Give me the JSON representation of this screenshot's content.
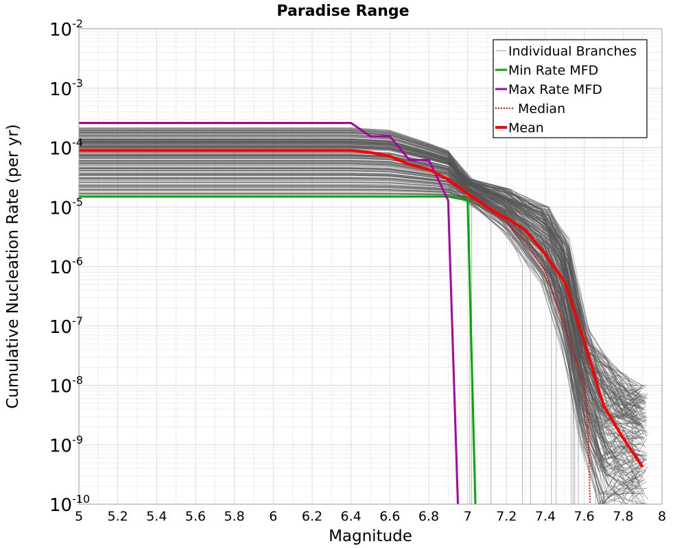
{
  "chart_data": {
    "type": "line",
    "title": "Paradise Range",
    "xlabel": "Magnitude",
    "ylabel": "Cumulative Nucleation Rate (per yr)",
    "x_scale": "linear",
    "y_scale": "log",
    "xlim": [
      5,
      8
    ],
    "ylim": [
      1e-10,
      0.01
    ],
    "x_ticks": [
      "5",
      "5.2",
      "5.4",
      "5.6",
      "5.8",
      "6",
      "6.2",
      "6.4",
      "6.6",
      "6.8",
      "7",
      "7.2",
      "7.4",
      "7.6",
      "7.8",
      "8"
    ],
    "y_ticks": [
      {
        "base": "10",
        "exp": "-10"
      },
      {
        "base": "10",
        "exp": "-9"
      },
      {
        "base": "10",
        "exp": "-8"
      },
      {
        "base": "10",
        "exp": "-7"
      },
      {
        "base": "10",
        "exp": "-6"
      },
      {
        "base": "10",
        "exp": "-5"
      },
      {
        "base": "10",
        "exp": "-4"
      },
      {
        "base": "10",
        "exp": "-3"
      },
      {
        "base": "10",
        "exp": "-2"
      }
    ],
    "grid": true,
    "legend_position": "top-right",
    "series": [
      {
        "name": "Individual Branches",
        "color": "#555555",
        "style": "thin-translucent",
        "note_values": "many logic-tree branch curves forming a dense band",
        "x": [
          5.0,
          6.4,
          6.6,
          6.8,
          6.9,
          7.0,
          7.2,
          7.4,
          7.5,
          7.6,
          7.7,
          7.8,
          7.9
        ],
        "values_low": [
          1.5e-05,
          1.5e-05,
          1.5e-05,
          1.5e-05,
          1.5e-05,
          1.3e-05,
          4e-06,
          5e-07,
          5e-08,
          1e-09,
          1e-10,
          1e-10,
          1e-10
        ],
        "values_high": [
          0.00022,
          0.00022,
          0.0002,
          0.00012,
          9e-05,
          3e-05,
          2e-05,
          1e-05,
          3e-06,
          1e-07,
          3e-08,
          1.5e-08,
          1e-08
        ]
      },
      {
        "name": "Min Rate MFD",
        "color": "#00aa00",
        "x": [
          5.0,
          6.4,
          6.6,
          6.8,
          6.9,
          7.0,
          7.04
        ],
        "values": [
          1.5e-05,
          1.5e-05,
          1.5e-05,
          1.5e-05,
          1.5e-05,
          1.3e-05,
          1e-10
        ]
      },
      {
        "name": "Max Rate MFD",
        "color": "#aa00aa",
        "x": [
          5.0,
          6.4,
          6.5,
          6.6,
          6.7,
          6.8,
          6.9,
          6.95
        ],
        "values": [
          0.00026,
          0.00026,
          0.000155,
          0.000155,
          6.2e-05,
          6.2e-05,
          1.3e-05,
          1e-10
        ]
      },
      {
        "name": "Median",
        "color": "#ff0000",
        "style": "dotted",
        "x": [
          5.0,
          6.4,
          6.5,
          6.6,
          6.7,
          6.8,
          6.9,
          7.0,
          7.1,
          7.2,
          7.3,
          7.4,
          7.5,
          7.6,
          7.62,
          7.63
        ],
        "values": [
          9e-05,
          9e-05,
          8e-05,
          7e-05,
          5e-05,
          4.3e-05,
          2.8e-05,
          1.6e-05,
          9.5e-06,
          5.5e-06,
          2.5e-06,
          8e-07,
          1e-07,
          1e-08,
          2e-09,
          1e-10
        ]
      },
      {
        "name": "Mean",
        "color": "#ff0000",
        "style": "thick",
        "x": [
          5.0,
          6.4,
          6.5,
          6.6,
          6.7,
          6.8,
          6.9,
          7.0,
          7.1,
          7.2,
          7.3,
          7.4,
          7.5,
          7.6,
          7.7,
          7.8,
          7.9
        ],
        "values": [
          9e-05,
          9e-05,
          8.3e-05,
          7.2e-05,
          5.2e-05,
          4.3e-05,
          2.9e-05,
          1.7e-05,
          1e-05,
          6.5e-06,
          4e-06,
          1.6e-06,
          5.5e-07,
          5.5e-08,
          4.5e-09,
          1.3e-09,
          4.2e-10
        ]
      }
    ]
  }
}
